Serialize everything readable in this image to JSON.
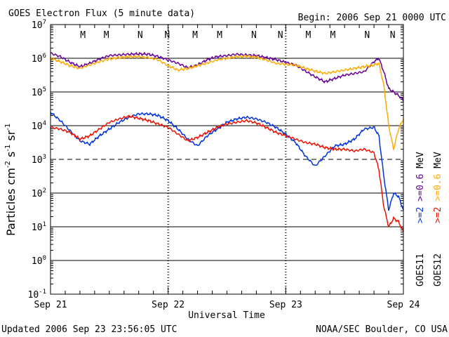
{
  "colors": {
    "goes11_high": "#0033dd",
    "goes12_high": "#ee1100",
    "goes11_low": "#660099",
    "goes12_low": "#ffaa00",
    "marker_m": "#dd0000",
    "marker_n": "#dd0000",
    "marker_m_blue": "#0033cc"
  },
  "chart_data": {
    "type": "line",
    "title": "GOES Electron Flux (5 minute data)",
    "begin_label": "Begin: 2006 Sep 21 0000 UTC",
    "xlabel": "Universal Time",
    "ylabel_main": "Particles cm",
    "ylabel_sup1": "-2",
    "ylabel_mid1": "s",
    "ylabel_sup2": "-1",
    "ylabel_mid2": "sr",
    "ylabel_sup3": "-1",
    "footer_left": "Updated 2006 Sep 23 23:56:05 UTC",
    "footer_right": "NOAA/SEC Boulder, CO USA",
    "x_ticks": [
      "Sep 21",
      "Sep 22",
      "Sep 23",
      "Sep 24"
    ],
    "x_range_hours": [
      0,
      72
    ],
    "y_range_log": [
      -1,
      7
    ],
    "y_ticks": [
      {
        "base": "10",
        "exp": "7",
        "value": 7
      },
      {
        "base": "10",
        "exp": "6",
        "value": 6
      },
      {
        "base": "10",
        "exp": "5",
        "value": 5
      },
      {
        "base": "10",
        "exp": "4",
        "value": 4
      },
      {
        "base": "10",
        "exp": "3",
        "value": 3
      },
      {
        "base": "10",
        "exp": "2",
        "value": 2
      },
      {
        "base": "10",
        "exp": "1",
        "value": 1
      },
      {
        "base": "10",
        "exp": "0",
        "value": 0
      },
      {
        "base": "10",
        "exp": "-1",
        "value": -1
      }
    ],
    "threshold_log": 3,
    "markers": [
      {
        "label": "M",
        "hour": 6.6,
        "color": "#dd0000"
      },
      {
        "label": "M",
        "hour": 11.4,
        "color": "#0033cc"
      },
      {
        "label": "N",
        "hour": 18.3,
        "color": "#dd0000"
      },
      {
        "label": "N",
        "hour": 23.8,
        "color": "#0033cc"
      },
      {
        "label": "M",
        "hour": 29.5,
        "color": "#dd0000"
      },
      {
        "label": "M",
        "hour": 34.5,
        "color": "#0033cc"
      },
      {
        "label": "N",
        "hour": 41.5,
        "color": "#dd0000"
      },
      {
        "label": "N",
        "hour": 46.9,
        "color": "#0033cc"
      },
      {
        "label": "M",
        "hour": 52.6,
        "color": "#dd0000"
      },
      {
        "label": "M",
        "hour": 57.6,
        "color": "#0033cc"
      },
      {
        "label": "N",
        "hour": 64.6,
        "color": "#dd0000"
      },
      {
        "label": "N",
        "hour": 69.8,
        "color": "#0033cc"
      }
    ],
    "legend": {
      "goes11": "GOES11",
      "goes12": "GOES12",
      "entries": [
        {
          "label": ">=2",
          "color": "#0033dd"
        },
        {
          "label": ">=0.6",
          "color": "#660099"
        },
        {
          "label": "MeV",
          "color": "#000000"
        },
        {
          "label": ">=2",
          "color": "#ee1100"
        },
        {
          "label": ">=0.6",
          "color": "#ffaa00"
        },
        {
          "label": "MeV",
          "color": "#000000"
        }
      ]
    },
    "series": [
      {
        "name": "GOES11 >=0.6 MeV",
        "color": "#660099",
        "x": [
          0,
          2,
          4,
          6,
          8,
          10,
          12,
          14,
          16,
          18,
          20,
          22,
          24,
          26,
          28,
          30,
          32,
          34,
          36,
          38,
          40,
          42,
          44,
          46,
          48,
          50,
          52,
          54,
          56,
          58,
          60,
          62,
          64,
          66,
          67,
          68,
          69,
          70,
          71,
          72
        ],
        "y": [
          6.15,
          6.05,
          5.88,
          5.75,
          5.85,
          5.98,
          6.08,
          6.1,
          6.12,
          6.13,
          6.12,
          6.05,
          5.95,
          5.85,
          5.72,
          5.8,
          5.96,
          6.05,
          6.08,
          6.12,
          6.1,
          6.08,
          6.02,
          5.96,
          5.88,
          5.8,
          5.62,
          5.45,
          5.3,
          5.4,
          5.5,
          5.55,
          5.6,
          5.9,
          6.0,
          5.6,
          5.1,
          5.0,
          4.9,
          4.75
        ]
      },
      {
        "name": "GOES12 >=0.6 MeV",
        "color": "#ffaa00",
        "x": [
          0,
          2,
          4,
          6,
          8,
          10,
          12,
          14,
          16,
          18,
          20,
          22,
          24,
          26,
          28,
          30,
          32,
          34,
          36,
          38,
          40,
          42,
          44,
          46,
          48,
          50,
          52,
          54,
          56,
          58,
          60,
          62,
          64,
          66,
          67,
          68,
          69,
          70,
          71,
          72
        ],
        "y": [
          6.0,
          5.9,
          5.78,
          5.7,
          5.8,
          5.9,
          5.98,
          6.02,
          6.05,
          6.05,
          6.02,
          5.95,
          5.78,
          5.65,
          5.7,
          5.78,
          5.86,
          5.95,
          6.0,
          6.05,
          6.06,
          6.03,
          5.95,
          5.85,
          5.82,
          5.8,
          5.7,
          5.62,
          5.55,
          5.6,
          5.65,
          5.7,
          5.75,
          5.8,
          5.85,
          5.2,
          4.0,
          3.3,
          3.9,
          4.2
        ]
      },
      {
        "name": "GOES11 >=2 MeV",
        "color": "#0033dd",
        "x": [
          0,
          2,
          4,
          6,
          8,
          10,
          12,
          14,
          16,
          18,
          20,
          22,
          24,
          26,
          28,
          30,
          32,
          34,
          36,
          38,
          40,
          42,
          44,
          46,
          48,
          50,
          52,
          54,
          56,
          58,
          60,
          62,
          64,
          66,
          67,
          68,
          69,
          70,
          71,
          72
        ],
        "y": [
          4.4,
          4.15,
          3.85,
          3.55,
          3.45,
          3.7,
          3.9,
          4.1,
          4.25,
          4.35,
          4.35,
          4.3,
          4.15,
          3.9,
          3.6,
          3.4,
          3.7,
          3.9,
          4.1,
          4.2,
          4.25,
          4.2,
          4.1,
          3.95,
          3.75,
          3.5,
          3.1,
          2.8,
          3.1,
          3.4,
          3.45,
          3.6,
          3.9,
          3.95,
          3.7,
          2.5,
          1.5,
          2.0,
          1.9,
          1.5
        ]
      },
      {
        "name": "GOES12 >=2 MeV",
        "color": "#ee1100",
        "x": [
          0,
          2,
          4,
          6,
          8,
          10,
          12,
          14,
          16,
          18,
          20,
          22,
          24,
          26,
          28,
          30,
          32,
          34,
          36,
          38,
          40,
          42,
          44,
          46,
          48,
          50,
          52,
          54,
          56,
          58,
          60,
          62,
          64,
          66,
          67,
          68,
          69,
          70,
          71,
          72
        ],
        "y": [
          3.95,
          3.9,
          3.8,
          3.6,
          3.7,
          3.9,
          4.1,
          4.2,
          4.28,
          4.22,
          4.15,
          4.05,
          3.95,
          3.75,
          3.55,
          3.65,
          3.8,
          3.95,
          4.05,
          4.1,
          4.15,
          4.08,
          3.95,
          3.8,
          3.7,
          3.6,
          3.5,
          3.45,
          3.35,
          3.3,
          3.3,
          3.25,
          3.3,
          3.2,
          2.7,
          1.6,
          1.0,
          1.25,
          1.15,
          0.85
        ]
      }
    ]
  }
}
